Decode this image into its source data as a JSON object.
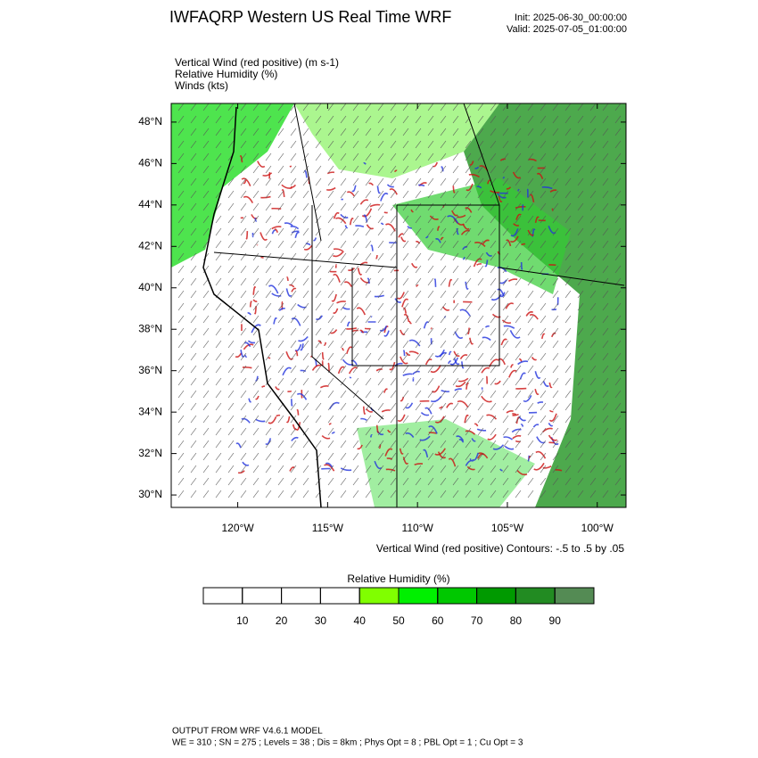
{
  "header": {
    "title": "IWFAQRP Western US Real Time WRF",
    "init": "Init: 2025-06-30_00:00:00",
    "valid": "Valid: 2025-07-05_01:00:00"
  },
  "fields": [
    "Vertical Wind (red positive)   (m s-1)",
    "Relative Humidity   (%)",
    "Winds   (kts)"
  ],
  "map": {
    "lon_lim": [
      -123.7,
      -98.4
    ],
    "lat_lim": [
      29.4,
      48.9
    ],
    "lat_ticks": [
      {
        "value": 30,
        "label": "30°N"
      },
      {
        "value": 32,
        "label": "32°N"
      },
      {
        "value": 34,
        "label": "34°N"
      },
      {
        "value": 36,
        "label": "36°N"
      },
      {
        "value": 38,
        "label": "38°N"
      },
      {
        "value": 40,
        "label": "40°N"
      },
      {
        "value": 42,
        "label": "42°N"
      },
      {
        "value": 44,
        "label": "44°N"
      },
      {
        "value": 46,
        "label": "46°N"
      },
      {
        "value": 48,
        "label": "48°N"
      }
    ],
    "lon_ticks": [
      {
        "value": -120,
        "label": "120°W"
      },
      {
        "value": -115,
        "label": "115°W"
      },
      {
        "value": -110,
        "label": "110°W"
      },
      {
        "value": -105,
        "label": "105°W"
      },
      {
        "value": -100,
        "label": "100°W"
      }
    ],
    "contour_note": "Vertical Wind (red positive) Contours: -.5 to .5 by .05"
  },
  "colorbar": {
    "title": "Relative Humidity  (%)",
    "lim": [
      0,
      100
    ],
    "ticks": [
      10,
      20,
      30,
      40,
      50,
      60,
      70,
      80,
      90
    ],
    "colors": [
      "#ffffff",
      "#ffffff",
      "#ffffff",
      "#ffffff",
      "#80ff00",
      "#00f000",
      "#00c800",
      "#009a00",
      "#228b22",
      "#548b54"
    ]
  },
  "footer": {
    "line1": "OUTPUT FROM WRF V4.6.1 MODEL",
    "line2": "WE = 310 ; SN = 275 ; Levels = 38 ; Dis = 8km ; Phys Opt = 8 ; PBL Opt = 1 ; Cu Opt = 3"
  }
}
